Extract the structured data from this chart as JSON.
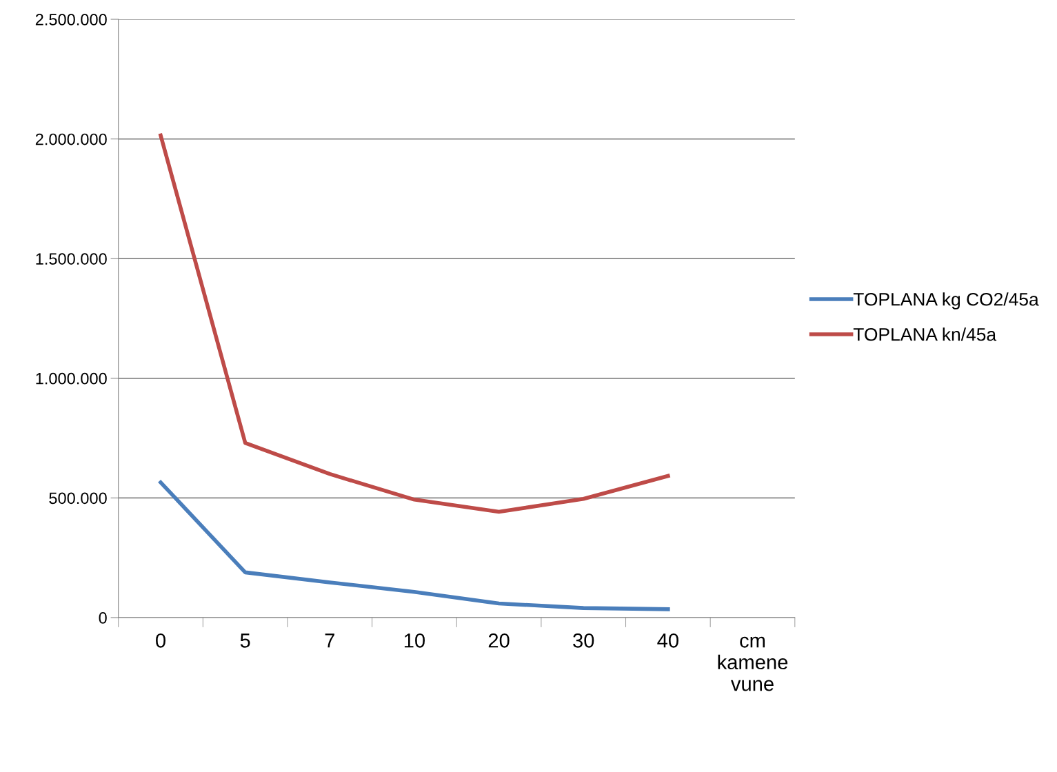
{
  "chart_data": {
    "type": "line",
    "categories": [
      "0",
      "5",
      "7",
      "10",
      "20",
      "30",
      "40",
      "cm\nkamene\nvune"
    ],
    "series": [
      {
        "name": "TOPLANA kg CO2/45a",
        "color": "#4a7ebb",
        "values": [
          565000,
          189000,
          147000,
          107000,
          59000,
          40000,
          35000,
          null
        ]
      },
      {
        "name": "TOPLANA kn/45a",
        "color": "#be4b48",
        "values": [
          2015000,
          730000,
          600000,
          493000,
          442000,
          496000,
          592000,
          null
        ]
      }
    ],
    "ylim": [
      0,
      2500000
    ],
    "yticks": [
      {
        "value": 0,
        "label": "0"
      },
      {
        "value": 500000,
        "label": "500.000"
      },
      {
        "value": 1000000,
        "label": "1.000.000"
      },
      {
        "value": 1500000,
        "label": "1.500.000"
      },
      {
        "value": 2000000,
        "label": "2.000.000"
      },
      {
        "value": 2500000,
        "label": "2.500.000"
      }
    ],
    "grid": "y",
    "legend": "right",
    "marker": "none",
    "line_style": "solid"
  }
}
